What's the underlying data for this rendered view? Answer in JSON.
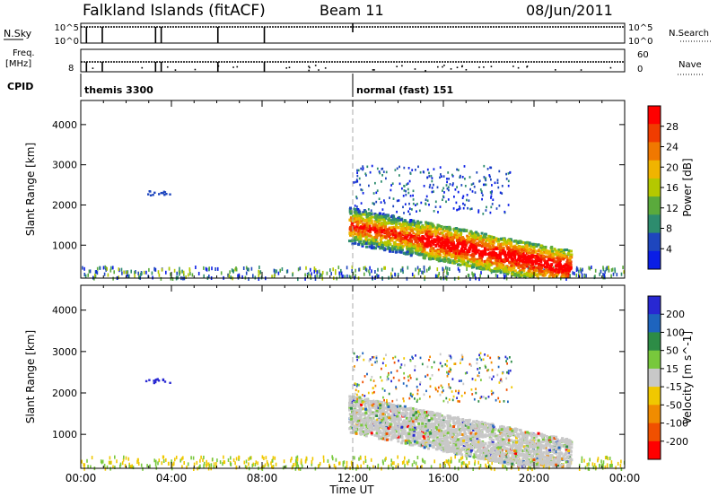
{
  "header": {
    "station": "Falkland Islands (fitACF)",
    "beam": "Beam 11",
    "date": "08/Jun/2011"
  },
  "status_panels": {
    "nsky_label": "N.Sky",
    "nsearch_label": "N.Search",
    "nsky_ticks": [
      "10^5",
      "10^0"
    ],
    "nsearch_ticks": [
      "10^5",
      "10^0"
    ],
    "freq_label_top": "Freq.",
    "freq_label_units": "[MHz]",
    "freq_tick": "8",
    "nave_label": "Nave",
    "nave_ticks": [
      "60",
      "0"
    ],
    "cpid_label": "CPID",
    "cpid_entries": [
      {
        "text": "themis 3300",
        "start_hour": 0.0
      },
      {
        "text": "normal (fast) 151",
        "start_hour": 12.0
      }
    ],
    "nsky_spike_hours": [
      0.25,
      0.95,
      3.3,
      3.55,
      6.05,
      8.1
    ]
  },
  "time_axis": {
    "label": "Time UT",
    "ticks": [
      "00:00",
      "04:00",
      "08:00",
      "12:00",
      "16:00",
      "20:00",
      "00:00"
    ],
    "range_hours": [
      0,
      24
    ]
  },
  "colors": {
    "power_scale": [
      "#0a1ee6",
      "#1e46be",
      "#2d8c6e",
      "#5aaa3c",
      "#b4c800",
      "#f0b400",
      "#f07800",
      "#f03c00",
      "#ff0000"
    ],
    "velocity_scale": [
      "#2828d2",
      "#1e64be",
      "#2d8c46",
      "#78c83c",
      "#c8c8c8",
      "#f0c800",
      "#f08c00",
      "#f05000",
      "#ff0000"
    ]
  },
  "chart_data": [
    {
      "type": "heatmap",
      "title": "",
      "xlabel": "Time UT",
      "ylabel": "Slant Range [km]",
      "xlim": [
        0,
        24
      ],
      "ylim": [
        180,
        4600
      ],
      "yticks": [
        1000,
        2000,
        3000,
        4000
      ],
      "colorbar": {
        "label": "Power [dB]",
        "ticks": [
          "4",
          "8",
          "12",
          "16",
          "20",
          "24",
          "28"
        ],
        "range": [
          0,
          32
        ]
      },
      "regions": [
        {
          "t_start": 11.8,
          "t_end": 15.0,
          "range_low": 400,
          "range_high": 1800,
          "level": "mixed"
        },
        {
          "t_start": 14.0,
          "t_end": 21.5,
          "range_low": 250,
          "range_high": 1300,
          "level": "high"
        },
        {
          "t_start": 2.7,
          "t_end": 4.0,
          "range_low": 2200,
          "range_high": 2400,
          "level": "low"
        },
        {
          "t_start": 12.0,
          "t_end": 19.0,
          "range_low": 1800,
          "range_high": 3000,
          "level": "low"
        }
      ]
    },
    {
      "type": "heatmap",
      "title": "",
      "xlabel": "Time UT",
      "ylabel": "Slant Range [km]",
      "xlim": [
        0,
        24
      ],
      "ylim": [
        180,
        4600
      ],
      "yticks": [
        1000,
        2000,
        3000,
        4000
      ],
      "colorbar": {
        "label": "Velocity [m s^-1]",
        "ticks": [
          "200",
          "100",
          "50",
          "15",
          "-15",
          "-50",
          "-100",
          "-200"
        ],
        "range": [
          -250,
          250
        ]
      },
      "regions": [
        {
          "t_start": 12.0,
          "t_end": 21.5,
          "range_low": 300,
          "range_high": 1800,
          "level": "near-zero"
        },
        {
          "t_start": 2.7,
          "t_end": 4.0,
          "range_low": 2200,
          "range_high": 2400,
          "level": "positive"
        },
        {
          "t_start": 0.0,
          "t_end": 12.0,
          "range_low": 180,
          "range_high": 500,
          "level": "ground-scatter"
        }
      ]
    }
  ]
}
